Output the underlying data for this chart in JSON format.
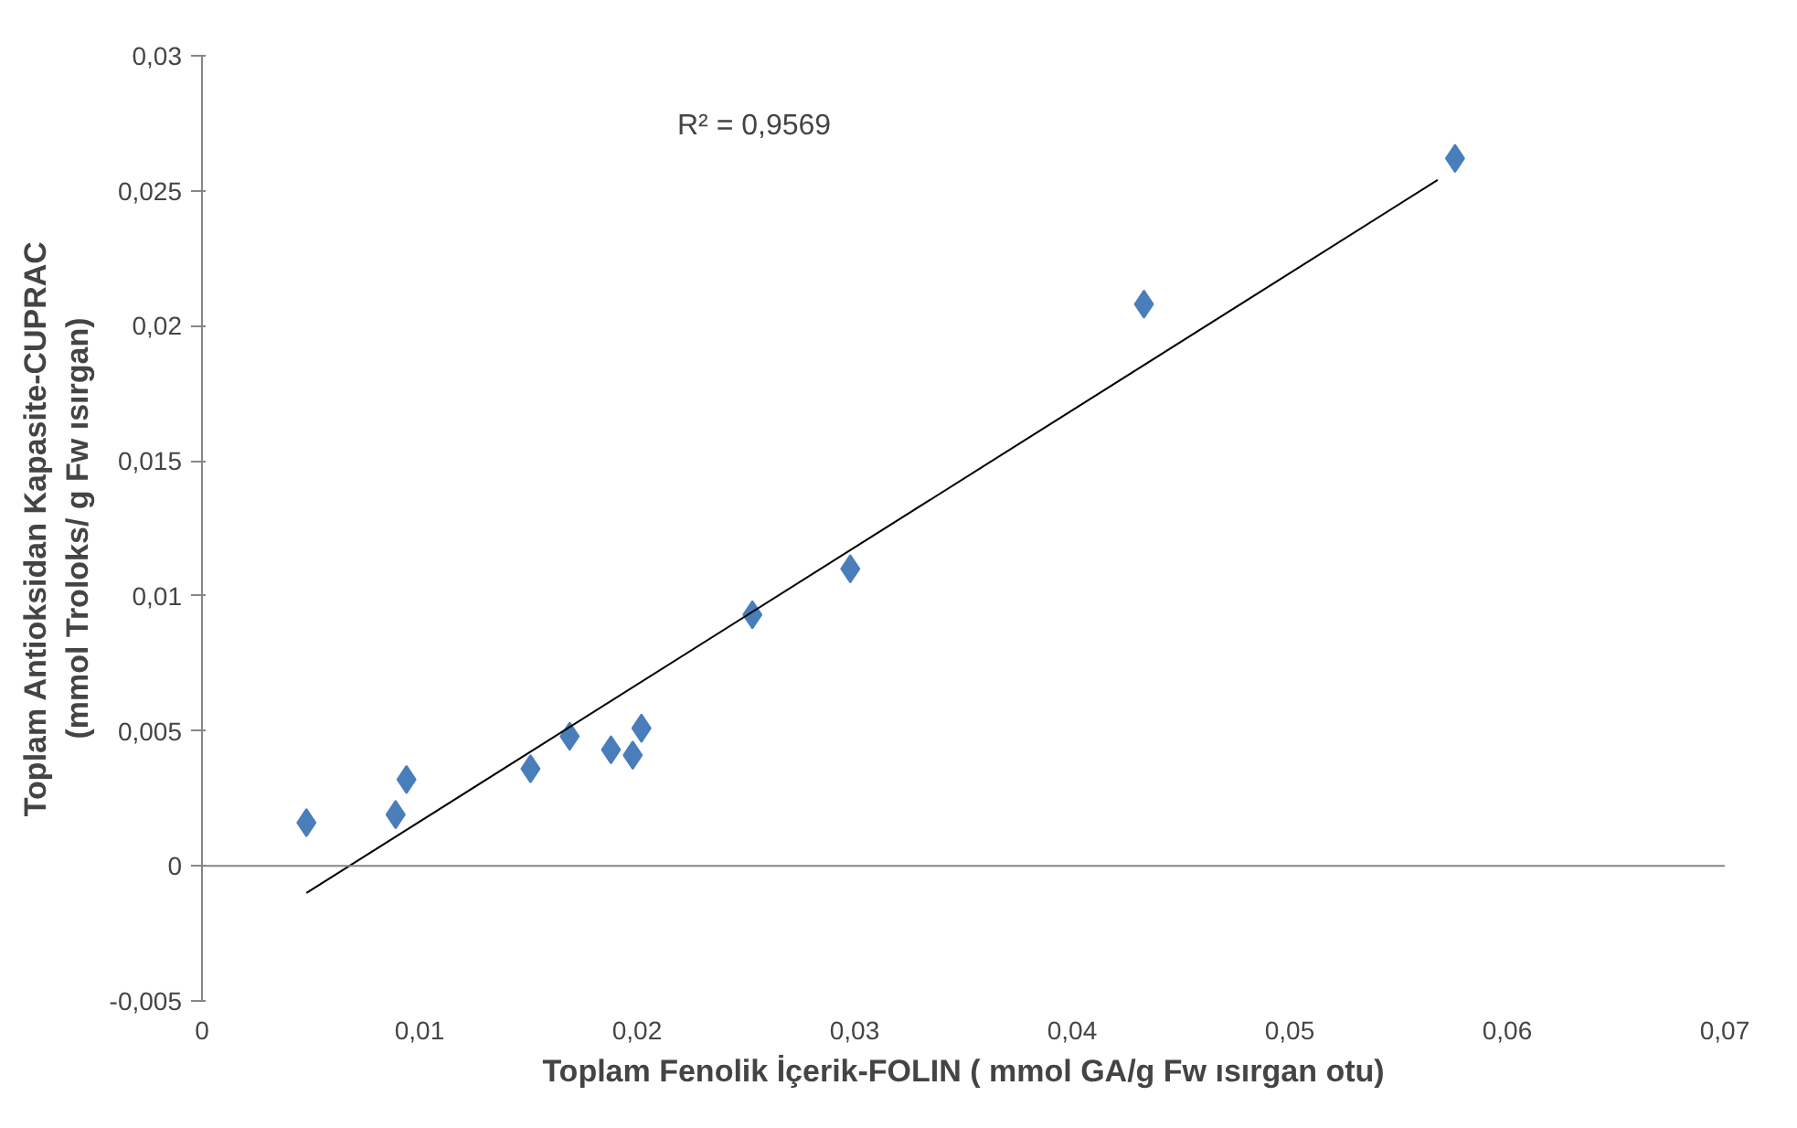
{
  "chart_data": {
    "type": "scatter",
    "xlabel": "Toplam Fenolik İçerik-FOLIN ( mmol GA/g Fw ısırgan otu)",
    "ylabel": "Toplam Antioksidan Kapasite-CUPRAC\n(mmol Troloks/ g Fw ısırgan)",
    "xlim": [
      0,
      0.07
    ],
    "ylim": [
      -0.005,
      0.03
    ],
    "xticks": [
      {
        "value": 0,
        "label": "0"
      },
      {
        "value": 0.01,
        "label": "0,01"
      },
      {
        "value": 0.02,
        "label": "0,02"
      },
      {
        "value": 0.03,
        "label": "0,03"
      },
      {
        "value": 0.04,
        "label": "0,04"
      },
      {
        "value": 0.05,
        "label": "0,05"
      },
      {
        "value": 0.06,
        "label": "0,06"
      },
      {
        "value": 0.07,
        "label": "0,07"
      }
    ],
    "yticks": [
      {
        "value": -0.005,
        "label": "-0,005"
      },
      {
        "value": 0,
        "label": "0"
      },
      {
        "value": 0.005,
        "label": "0,005"
      },
      {
        "value": 0.01,
        "label": "0,01"
      },
      {
        "value": 0.015,
        "label": "0,015"
      },
      {
        "value": 0.02,
        "label": "0,02"
      },
      {
        "value": 0.025,
        "label": "0,025"
      },
      {
        "value": 0.03,
        "label": "0,03"
      }
    ],
    "grid": false,
    "series": [
      {
        "marker": "diamond",
        "color": "#4a7ebb",
        "x": [
          0.0048,
          0.0089,
          0.0094,
          0.0151,
          0.0169,
          0.0188,
          0.0198,
          0.0202,
          0.0253,
          0.0298,
          0.0433,
          0.0576
        ],
        "values": [
          0.0016,
          0.0019,
          0.0032,
          0.0036,
          0.0048,
          0.0043,
          0.0041,
          0.0051,
          0.0093,
          0.011,
          0.0208,
          0.0262
        ]
      },
      {
        "type": "line",
        "color": "#000000",
        "x": [
          0.0048,
          0.0568
        ],
        "values": [
          -0.001,
          0.0254
        ]
      }
    ],
    "ref_lines": [
      {
        "axis": "y",
        "value": 0,
        "color": "#868686"
      }
    ],
    "annotations": [
      "R² = 0,9569"
    ]
  }
}
